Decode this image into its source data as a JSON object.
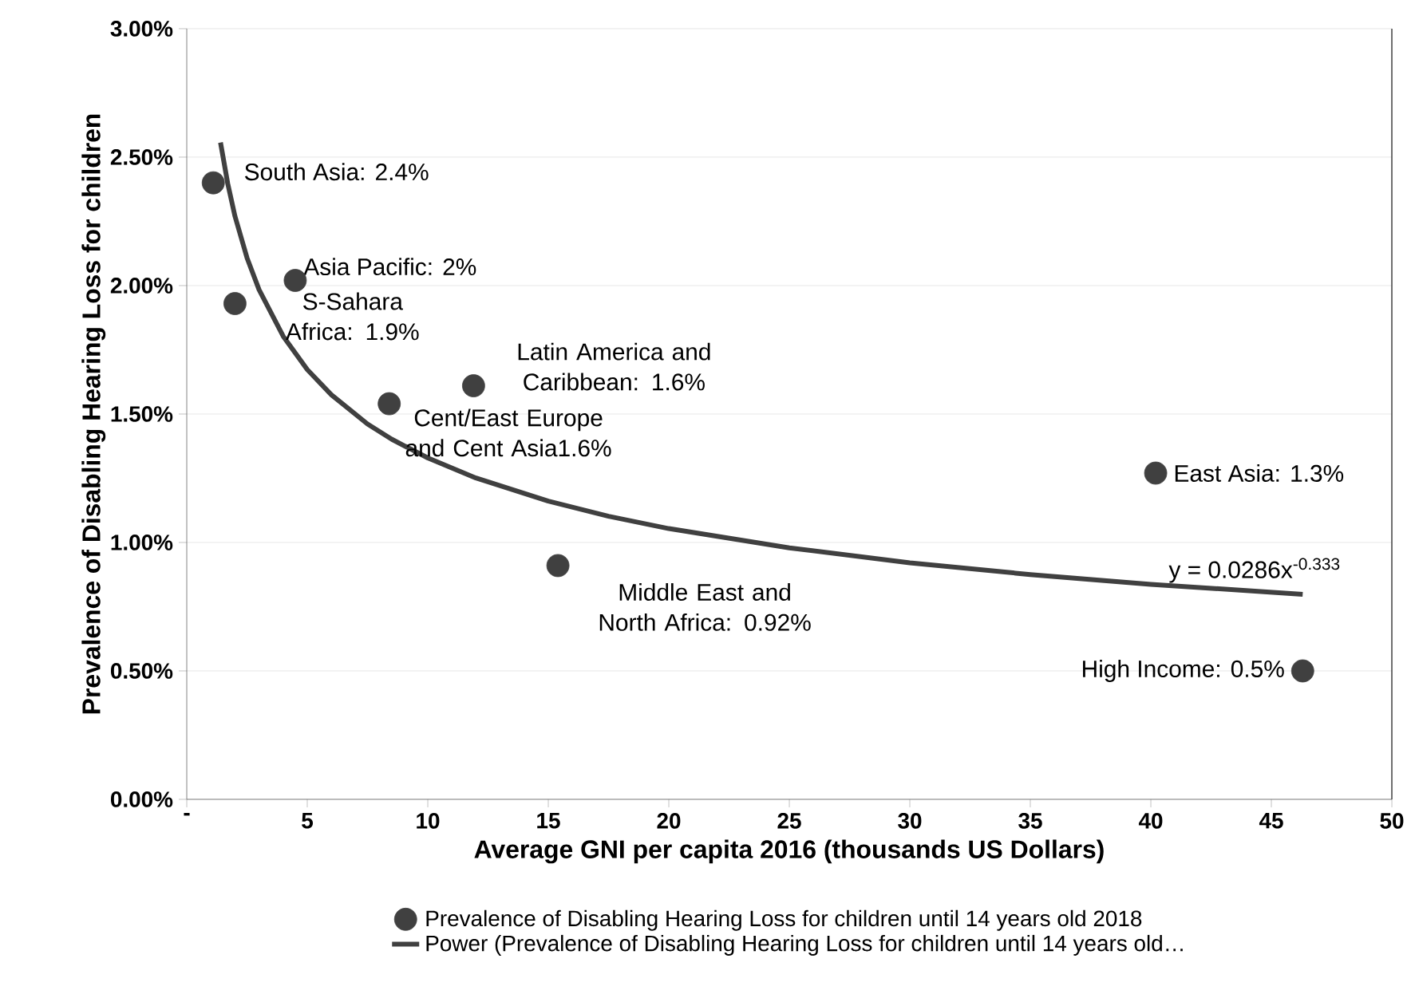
{
  "chart_data": {
    "type": "scatter",
    "xlabel": "Average GNI per capita 2016 (thousands US Dollars)",
    "ylabel": "Prevalence of Disabling Hearing Loss for children",
    "series": [
      {
        "name": "Prevalence of Disabling Hearing Loss for children until 14 years old 2018",
        "color": "#404040",
        "marker": "circle",
        "x": [
          1.1,
          2.0,
          4.5,
          8.4,
          11.9,
          15.4,
          40.2,
          46.3
        ],
        "values": [
          2.4,
          1.93,
          2.02,
          1.54,
          1.61,
          0.91,
          1.27,
          0.5
        ]
      },
      {
        "name": "Power (Prevalence of Disabling Hearing Loss for children until 14 years old…",
        "type": "line",
        "color": "#404040",
        "marker": "none",
        "line_style": "solid",
        "x": [
          1.4,
          1.7,
          2,
          2.5,
          3,
          4,
          5,
          6,
          7.5,
          8.5,
          10,
          12,
          15,
          17.5,
          20,
          25,
          30,
          35,
          40,
          46.3
        ],
        "values": [
          2.557,
          2.397,
          2.27,
          2.108,
          1.984,
          1.803,
          1.673,
          1.575,
          1.461,
          1.402,
          1.329,
          1.251,
          1.161,
          1.102,
          1.054,
          0.979,
          0.921,
          0.875,
          0.837,
          0.798
        ]
      }
    ],
    "annotations": [
      {
        "text": "South Asia: 2.4%",
        "x": 1.1,
        "y": 2.4
      },
      {
        "text": "S-Sahara Africa: 1.9%",
        "x": 2.0,
        "y": 1.93
      },
      {
        "text": "Asia Pacific: 2%",
        "x": 4.5,
        "y": 2.02
      },
      {
        "text": "Cent/East Europe and Cent Asia1.6%",
        "x": 8.4,
        "y": 1.54
      },
      {
        "text": "Latin America and Caribbean: 1.6%",
        "x": 11.9,
        "y": 1.61
      },
      {
        "text": "Middle East and North Africa: 0.92%",
        "x": 15.4,
        "y": 0.91
      },
      {
        "text": "East Asia: 1.3%",
        "x": 40.2,
        "y": 1.27
      },
      {
        "text": "High Income: 0.5%",
        "x": 46.3,
        "y": 0.5
      },
      {
        "text": "y = 0.0286x$^{-0.333}$",
        "x": 46.3,
        "y": 0.798
      }
    ],
    "xlim": [
      0,
      50
    ],
    "xticks": [
      {
        "value": 0,
        "label": "-"
      },
      5,
      10,
      15,
      20,
      25,
      30,
      35,
      40,
      45,
      50
    ],
    "ylim": [
      0,
      3
    ],
    "yticks": [
      {
        "value": 0,
        "label": "0.00%"
      },
      {
        "value": 0.5,
        "label": "0.50%"
      },
      {
        "value": 1,
        "label": "1.00%"
      },
      {
        "value": 1.5,
        "label": "1.50%"
      },
      {
        "value": 2,
        "label": "2.00%"
      },
      {
        "value": 2.5,
        "label": "2.50%"
      },
      {
        "value": 3,
        "label": "3.00%"
      }
    ],
    "grid": "y",
    "legend": "bottom"
  }
}
